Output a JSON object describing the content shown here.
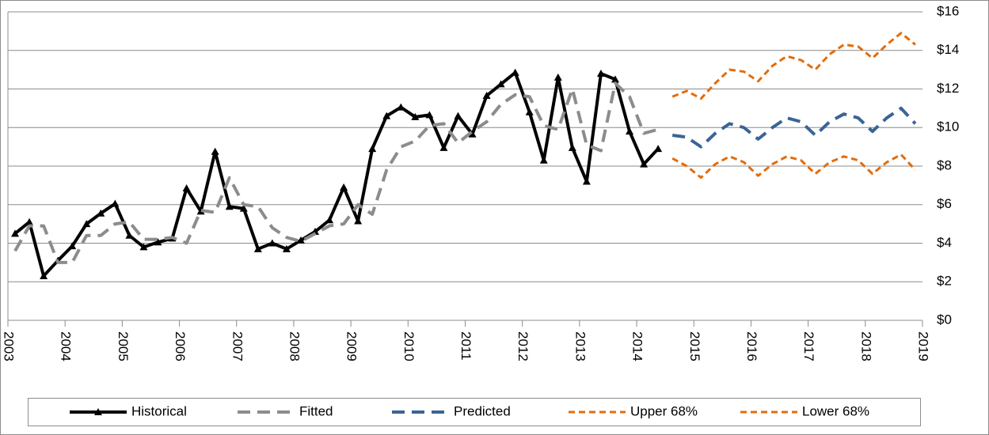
{
  "chart_data": {
    "type": "line",
    "xlim": [
      2003,
      2019
    ],
    "xticks": [
      2003,
      2004,
      2005,
      2006,
      2007,
      2008,
      2009,
      2010,
      2011,
      2012,
      2013,
      2014,
      2015,
      2016,
      2017,
      2018,
      2019
    ],
    "ylim": [
      0,
      16
    ],
    "yticks": [
      {
        "value": 0,
        "label": "$0"
      },
      {
        "value": 2,
        "label": "$2"
      },
      {
        "value": 4,
        "label": "$4"
      },
      {
        "value": 6,
        "label": "$6"
      },
      {
        "value": 8,
        "label": "$8"
      },
      {
        "value": 10,
        "label": "$10"
      },
      {
        "value": 12,
        "label": "$12"
      },
      {
        "value": 14,
        "label": "$14"
      },
      {
        "value": 16,
        "label": "$16"
      }
    ],
    "grid": true,
    "legend": "bottom",
    "series": [
      {
        "name": "Historical",
        "color": "#000000",
        "dash": "solid",
        "marker": "triangle",
        "x": [
          2003.125,
          2003.375,
          2003.625,
          2003.875,
          2004.125,
          2004.375,
          2004.625,
          2004.875,
          2005.125,
          2005.375,
          2005.625,
          2005.875,
          2006.125,
          2006.375,
          2006.625,
          2006.875,
          2007.125,
          2007.375,
          2007.625,
          2007.875,
          2008.125,
          2008.375,
          2008.625,
          2008.875,
          2009.125,
          2009.375,
          2009.625,
          2009.875,
          2010.125,
          2010.375,
          2010.625,
          2010.875,
          2011.125,
          2011.375,
          2011.625,
          2011.875,
          2012.125,
          2012.375,
          2012.625,
          2012.875,
          2013.125,
          2013.375,
          2013.625,
          2013.875,
          2014.125,
          2014.375
        ],
        "values": [
          4.5,
          5.1,
          2.3,
          3.1,
          3.85,
          5.0,
          5.55,
          6.05,
          4.4,
          3.8,
          4.05,
          4.25,
          6.85,
          5.65,
          8.75,
          5.9,
          5.8,
          3.7,
          4.0,
          3.7,
          4.15,
          4.6,
          5.2,
          6.9,
          5.15,
          8.9,
          10.6,
          11.05,
          10.55,
          10.65,
          8.95,
          10.6,
          9.65,
          11.65,
          12.25,
          12.85,
          10.8,
          8.3,
          12.6,
          8.95,
          7.2,
          12.8,
          12.5,
          9.8,
          8.1,
          8.9
        ]
      },
      {
        "name": "Fitted",
        "color": "#8c8c8c",
        "dash": "long",
        "x": [
          2003.125,
          2003.375,
          2003.625,
          2003.875,
          2004.125,
          2004.375,
          2004.625,
          2004.875,
          2005.125,
          2005.375,
          2005.625,
          2005.875,
          2006.125,
          2006.375,
          2006.625,
          2006.875,
          2007.125,
          2007.375,
          2007.625,
          2007.875,
          2008.125,
          2008.375,
          2008.625,
          2008.875,
          2009.125,
          2009.375,
          2009.625,
          2009.875,
          2010.125,
          2010.375,
          2010.625,
          2010.875,
          2011.125,
          2011.375,
          2011.625,
          2011.875,
          2012.125,
          2012.375,
          2012.625,
          2012.875,
          2013.125,
          2013.375,
          2013.625,
          2013.875,
          2014.125,
          2014.375
        ],
        "values": [
          3.6,
          4.9,
          4.9,
          3.0,
          3.0,
          4.4,
          4.4,
          5.0,
          5.1,
          4.2,
          4.2,
          4.3,
          4.0,
          5.7,
          5.6,
          7.4,
          6.0,
          5.9,
          4.8,
          4.3,
          4.1,
          4.5,
          4.9,
          5.0,
          6.0,
          5.5,
          7.8,
          9.0,
          9.3,
          10.1,
          10.2,
          9.2,
          9.8,
          10.3,
          11.2,
          11.7,
          11.6,
          10.1,
          9.9,
          12.0,
          9.1,
          8.8,
          12.3,
          11.6,
          9.7,
          9.9
        ]
      },
      {
        "name": "Predicted",
        "color": "#3a6496",
        "dash": "long",
        "x": [
          2014.625,
          2014.875,
          2015.125,
          2015.375,
          2015.625,
          2015.875,
          2016.125,
          2016.375,
          2016.625,
          2016.875,
          2017.125,
          2017.375,
          2017.625,
          2017.875,
          2018.125,
          2018.375,
          2018.625,
          2018.875
        ],
        "values": [
          9.6,
          9.5,
          9.0,
          9.7,
          10.2,
          10.0,
          9.4,
          10.0,
          10.5,
          10.3,
          9.6,
          10.3,
          10.7,
          10.5,
          9.8,
          10.5,
          11.0,
          10.2
        ]
      },
      {
        "name": "Upper 68%",
        "color": "#e46c0a",
        "dash": "short",
        "x": [
          2014.625,
          2014.875,
          2015.125,
          2015.375,
          2015.625,
          2015.875,
          2016.125,
          2016.375,
          2016.625,
          2016.875,
          2017.125,
          2017.375,
          2017.625,
          2017.875,
          2018.125,
          2018.375,
          2018.625,
          2018.875
        ],
        "values": [
          11.6,
          11.9,
          11.5,
          12.3,
          13.0,
          12.9,
          12.4,
          13.2,
          13.7,
          13.5,
          13.0,
          13.8,
          14.3,
          14.2,
          13.6,
          14.3,
          14.9,
          14.3
        ]
      },
      {
        "name": "Lower 68%",
        "color": "#e46c0a",
        "dash": "short",
        "x": [
          2014.625,
          2014.875,
          2015.125,
          2015.375,
          2015.625,
          2015.875,
          2016.125,
          2016.375,
          2016.625,
          2016.875,
          2017.125,
          2017.375,
          2017.625,
          2017.875,
          2018.125,
          2018.375,
          2018.625,
          2018.875
        ],
        "values": [
          8.4,
          8.0,
          7.4,
          8.1,
          8.5,
          8.2,
          7.5,
          8.1,
          8.5,
          8.3,
          7.6,
          8.2,
          8.5,
          8.3,
          7.6,
          8.2,
          8.6,
          7.8
        ]
      }
    ]
  }
}
